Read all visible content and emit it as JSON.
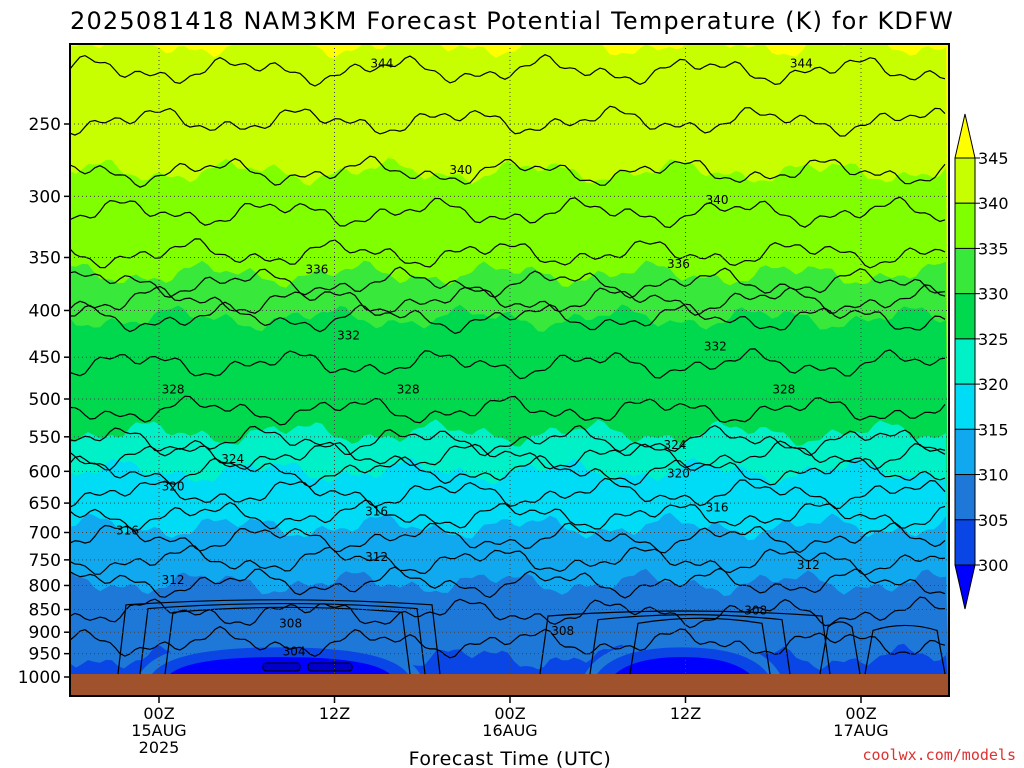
{
  "chart_data": {
    "type": "heatmap",
    "title": "2025081418 NAM3KM Forecast Potential Temperature (K) for KDFW",
    "xlabel": "Forecast Time (UTC)",
    "ylabel": "",
    "y_scale": "log",
    "y_inverted": true,
    "ylim": [
      1000,
      200
    ],
    "xlim": [
      -5,
      45
    ],
    "y_ticks": [
      250,
      300,
      350,
      400,
      450,
      500,
      550,
      600,
      650,
      700,
      750,
      800,
      850,
      900,
      950,
      1000
    ],
    "x_ticks": [
      {
        "x": 0,
        "lines": [
          "00Z",
          "15AUG",
          "2025"
        ]
      },
      {
        "x": 10,
        "lines": [
          "12Z"
        ]
      },
      {
        "x": 20,
        "lines": [
          "00Z",
          "16AUG"
        ]
      },
      {
        "x": 30,
        "lines": [
          "12Z"
        ]
      },
      {
        "x": 40,
        "lines": [
          "00Z",
          "17AUG"
        ]
      }
    ],
    "grid": true,
    "colorbar": {
      "levels": [
        300,
        305,
        310,
        315,
        320,
        325,
        330,
        335,
        340,
        345
      ],
      "colors": [
        "#0000ff",
        "#0a46e6",
        "#1e78d8",
        "#10a8ee",
        "#00dcf5",
        "#00f0c8",
        "#00d84e",
        "#38e83a",
        "#80ff00",
        "#c8ff00",
        "#ffff00"
      ],
      "extend": "both"
    },
    "contour_labels": [
      {
        "text": "344",
        "x": 12.7,
        "p": 214
      },
      {
        "text": "344",
        "x": 36.6,
        "p": 214
      },
      {
        "text": "340",
        "x": 17.2,
        "p": 280
      },
      {
        "text": "340",
        "x": 31.8,
        "p": 302
      },
      {
        "text": "336",
        "x": 9.0,
        "p": 360
      },
      {
        "text": "336",
        "x": 29.6,
        "p": 355
      },
      {
        "text": "332",
        "x": 10.8,
        "p": 425
      },
      {
        "text": "332",
        "x": 31.7,
        "p": 437
      },
      {
        "text": "328",
        "x": 0.8,
        "p": 487
      },
      {
        "text": "328",
        "x": 14.2,
        "p": 487
      },
      {
        "text": "328",
        "x": 35.6,
        "p": 487
      },
      {
        "text": "324",
        "x": 4.2,
        "p": 580
      },
      {
        "text": "324",
        "x": 29.4,
        "p": 560
      },
      {
        "text": "320",
        "x": 0.8,
        "p": 622
      },
      {
        "text": "320",
        "x": 29.6,
        "p": 602
      },
      {
        "text": "316",
        "x": 12.4,
        "p": 662
      },
      {
        "text": "316",
        "x": 31.8,
        "p": 656
      },
      {
        "text": "316",
        "x": -1.8,
        "p": 695
      },
      {
        "text": "312",
        "x": 12.4,
        "p": 743
      },
      {
        "text": "312",
        "x": 37.0,
        "p": 758
      },
      {
        "text": "312",
        "x": 0.8,
        "p": 787
      },
      {
        "text": "308",
        "x": 7.5,
        "p": 878
      },
      {
        "text": "308",
        "x": 34.0,
        "p": 850
      },
      {
        "text": "308",
        "x": 23.0,
        "p": 895
      },
      {
        "text": "304",
        "x": 7.7,
        "p": 942
      }
    ],
    "terrain_below_p": 985
  },
  "footer": {
    "credit": "coolwx.com/models",
    "credit_color": "#e03030"
  }
}
